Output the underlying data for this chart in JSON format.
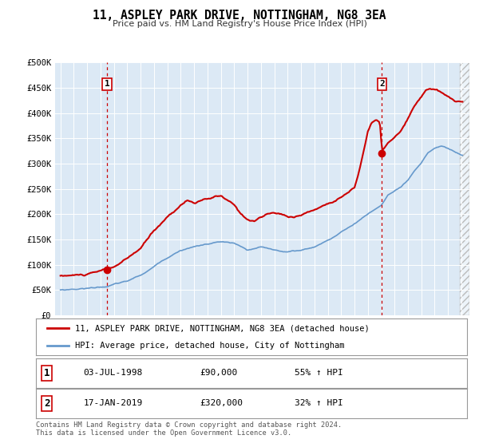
{
  "title": "11, ASPLEY PARK DRIVE, NOTTINGHAM, NG8 3EA",
  "subtitle": "Price paid vs. HM Land Registry's House Price Index (HPI)",
  "background_color": "#dce9f5",
  "plot_bg_color": "#dce9f5",
  "fig_bg_color": "#ffffff",
  "red_line_color": "#cc0000",
  "blue_line_color": "#6699cc",
  "ylim": [
    0,
    500000
  ],
  "yticks": [
    0,
    50000,
    100000,
    150000,
    200000,
    250000,
    300000,
    350000,
    400000,
    450000,
    500000
  ],
  "ytick_labels": [
    "£0",
    "£50K",
    "£100K",
    "£150K",
    "£200K",
    "£250K",
    "£300K",
    "£350K",
    "£400K",
    "£450K",
    "£500K"
  ],
  "xlim_start": 1994.6,
  "xlim_end": 2025.6,
  "xticks": [
    1995,
    1996,
    1997,
    1998,
    1999,
    2000,
    2001,
    2002,
    2003,
    2004,
    2005,
    2006,
    2007,
    2008,
    2009,
    2010,
    2011,
    2012,
    2013,
    2014,
    2015,
    2016,
    2017,
    2018,
    2019,
    2020,
    2021,
    2022,
    2023,
    2024,
    2025
  ],
  "marker1_x": 1998.5,
  "marker1_y": 90000,
  "marker1_label": "1",
  "marker1_date": "03-JUL-1998",
  "marker1_price": "£90,000",
  "marker1_hpi": "55% ↑ HPI",
  "marker2_x": 2019.05,
  "marker2_y": 320000,
  "marker2_label": "2",
  "marker2_date": "17-JAN-2019",
  "marker2_price": "£320,000",
  "marker2_hpi": "32% ↑ HPI",
  "legend_label_red": "11, ASPLEY PARK DRIVE, NOTTINGHAM, NG8 3EA (detached house)",
  "legend_label_blue": "HPI: Average price, detached house, City of Nottingham",
  "footer_text": "Contains HM Land Registry data © Crown copyright and database right 2024.\nThis data is licensed under the Open Government Licence v3.0.",
  "dashed_vline_color": "#cc0000",
  "hatch_color": "#cccccc"
}
